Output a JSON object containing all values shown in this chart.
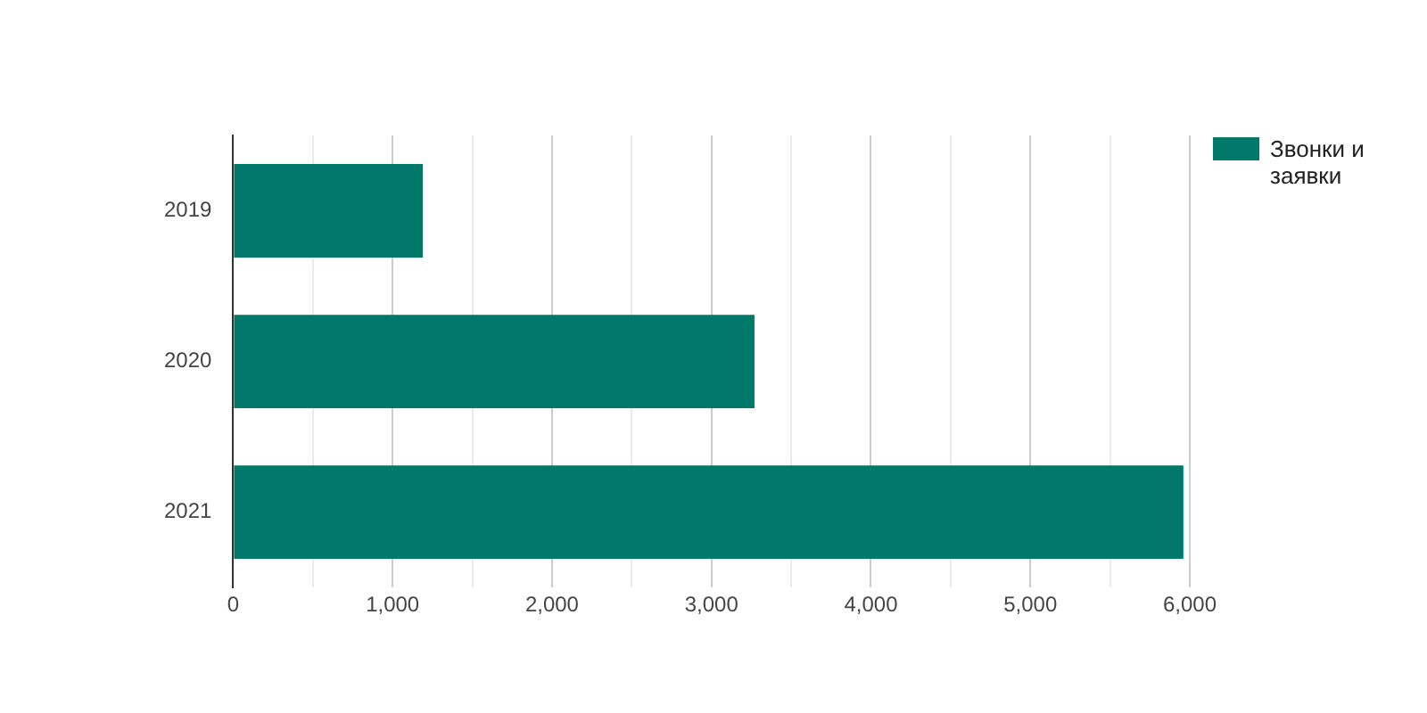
{
  "chart_data": {
    "type": "bar",
    "orientation": "horizontal",
    "categories": [
      "2019",
      "2020",
      "2021"
    ],
    "series": [
      {
        "name": "Звонки и заявки",
        "color": "#00796b",
        "values": [
          1190,
          3270,
          5960
        ]
      }
    ],
    "xlim": [
      0,
      6000
    ],
    "xticks": [
      0,
      {
        "value": 500,
        "label": null
      },
      {
        "value": 1000,
        "label": "1,000"
      },
      {
        "value": 1500,
        "label": null
      },
      {
        "value": 2000,
        "label": "2,000"
      },
      {
        "value": 2500,
        "label": null
      },
      {
        "value": 3000,
        "label": "3,000"
      },
      {
        "value": 3500,
        "label": null
      },
      {
        "value": 4000,
        "label": "4,000"
      },
      {
        "value": 4500,
        "label": null
      },
      {
        "value": 5000,
        "label": "5,000"
      },
      {
        "value": 5500,
        "label": null
      },
      {
        "value": 6000,
        "label": "6,000"
      }
    ],
    "grid": "x",
    "legend": "top right"
  }
}
